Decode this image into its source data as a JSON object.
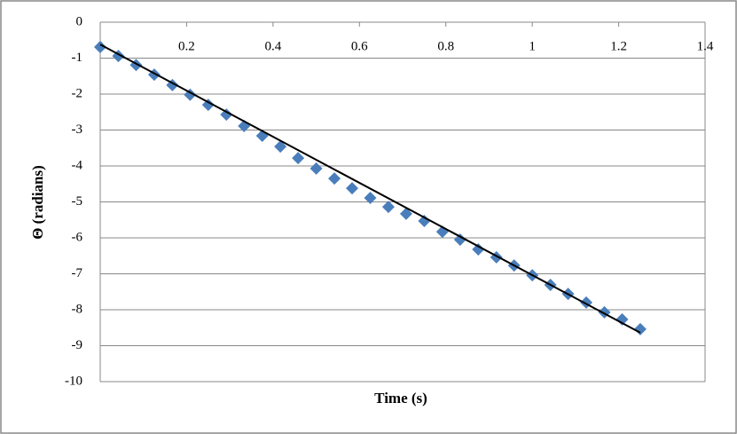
{
  "chart_data": {
    "type": "scatter",
    "x_label": "Time (s)",
    "y_label": "Θ (radians)",
    "series": [
      {
        "color": "#4a7ebb",
        "x": [
          0,
          0.042,
          0.083,
          0.125,
          0.167,
          0.208,
          0.25,
          0.292,
          0.333,
          0.375,
          0.417,
          0.458,
          0.5,
          0.542,
          0.583,
          0.625,
          0.667,
          0.708,
          0.75,
          0.792,
          0.833,
          0.875,
          0.917,
          0.958,
          1,
          1.042,
          1.083,
          1.125,
          1.167,
          1.208,
          1.25
        ],
        "values": [
          -0.69,
          -0.94,
          -1.19,
          -1.46,
          -1.75,
          -2.02,
          -2.3,
          -2.57,
          -2.89,
          -3.16,
          -3.46,
          -3.78,
          -4.07,
          -4.35,
          -4.62,
          -4.89,
          -5.14,
          -5.33,
          -5.53,
          -5.83,
          -6.05,
          -6.32,
          -6.54,
          -6.77,
          -7.04,
          -7.31,
          -7.56,
          -7.8,
          -8.07,
          -8.27,
          -8.54
        ]
      }
    ],
    "trendline": {
      "color": "#000000",
      "x": [
        0,
        1.25
      ],
      "values": [
        -0.62,
        -8.64
      ]
    },
    "xlim": [
      0,
      1.4
    ],
    "xticks": [
      0,
      0.2,
      0.4,
      0.6,
      0.8,
      1,
      1.2,
      1.4
    ],
    "ylim": [
      -10,
      0
    ],
    "yticks": [
      0,
      -1,
      -2,
      -3,
      -4,
      -5,
      -6,
      -7,
      -8,
      -9,
      -10
    ],
    "grid": true
  }
}
